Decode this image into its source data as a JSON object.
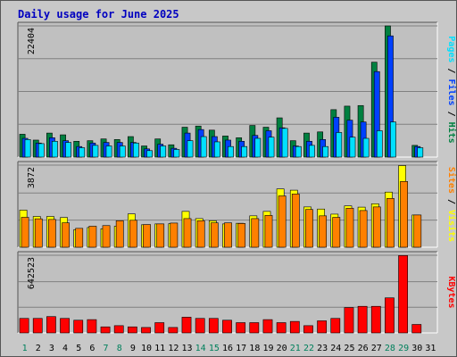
{
  "chart_data": {
    "type": "bar",
    "title": "Daily usage for June 2025",
    "colors": {
      "hits": "#008040",
      "files": "#0040ff",
      "pages": "#00e0ff",
      "visits": "#ffff00",
      "sites": "#ff8000",
      "kbytes": "#ff0000",
      "weekday_label": "#000000",
      "weekend_label": "#00805c",
      "panel_bg": "#c0c0c0",
      "border_dark": "#555555",
      "grid": "#808080"
    },
    "days": [
      "1",
      "2",
      "3",
      "4",
      "5",
      "6",
      "7",
      "8",
      "9",
      "10",
      "11",
      "12",
      "13",
      "14",
      "15",
      "16",
      "17",
      "18",
      "19",
      "20",
      "21",
      "22",
      "23",
      "24",
      "25",
      "26",
      "27",
      "28",
      "29",
      "30",
      "31"
    ],
    "weekend_days": [
      "1",
      "7",
      "8",
      "14",
      "15",
      "21",
      "22",
      "28",
      "29"
    ],
    "panels": [
      {
        "ymax_label": "22404",
        "ylim": [
          0,
          22404
        ],
        "legend": [
          {
            "text": "Pages",
            "color": "#00e0ff"
          },
          {
            "text": " / ",
            "color": "#000000"
          },
          {
            "text": "Files",
            "color": "#0040ff"
          },
          {
            "text": " / ",
            "color": "#000000"
          },
          {
            "text": "Hits",
            "color": "#008040"
          }
        ],
        "series": [
          {
            "name": "Hits",
            "color": "#008040",
            "values": [
              3900,
              2900,
              4100,
              3800,
              2700,
              2800,
              3100,
              3000,
              3500,
              1900,
              3100,
              2100,
              5100,
              5300,
              4600,
              3600,
              3300,
              5400,
              5100,
              6700,
              2800,
              4100,
              4300,
              8100,
              8700,
              8800,
              16200,
              22400,
              0,
              2000,
              0
            ]
          },
          {
            "name": "Files",
            "color": "#0040ff",
            "values": [
              3200,
              2400,
              3300,
              2800,
              1800,
              2400,
              2500,
              2500,
              2500,
              1400,
              2200,
              1500,
              4100,
              4700,
              3500,
              2900,
              2700,
              3700,
              4500,
              5000,
              1900,
              2700,
              3000,
              6800,
              6300,
              6000,
              14600,
              20700,
              0,
              1800,
              0
            ]
          },
          {
            "name": "Pages",
            "color": "#00e0ff",
            "values": [
              3000,
              2300,
              2700,
              2500,
              1600,
              2000,
              1900,
              1900,
              2400,
              1100,
              1900,
              1300,
              2800,
              3500,
              2600,
              1800,
              1800,
              3200,
              3400,
              4900,
              1800,
              2000,
              1800,
              4200,
              3400,
              3200,
              4500,
              6000,
              0,
              1600,
              0
            ]
          }
        ]
      },
      {
        "ymax_label": "3872",
        "ylim": [
          0,
          3872
        ],
        "legend": [
          {
            "text": "Sites",
            "color": "#ff8000"
          },
          {
            "text": " / ",
            "color": "#000000"
          },
          {
            "text": "Visits",
            "color": "#ffff00"
          }
        ],
        "series": [
          {
            "name": "Visits",
            "color": "#ffff00",
            "values": [
              1750,
              1450,
              1450,
              1400,
              830,
              930,
              870,
              990,
              1570,
              1060,
              1100,
              1110,
              1690,
              1350,
              1250,
              1100,
              1130,
              1480,
              1690,
              2750,
              2690,
              1900,
              1800,
              1560,
              1950,
              1890,
              2050,
              2600,
              3850,
              1520,
              0
            ]
          },
          {
            "name": "Sites",
            "color": "#ff8000",
            "values": [
              1410,
              1340,
              1310,
              1150,
              890,
              990,
              1020,
              1250,
              1270,
              1070,
              1100,
              1140,
              1350,
              1250,
              1150,
              1150,
              1120,
              1350,
              1500,
              2420,
              2510,
              1780,
              1480,
              1410,
              1840,
              1730,
              1900,
              2300,
              3100,
              1520,
              0
            ]
          }
        ]
      },
      {
        "ymax_label": "642523",
        "ylim": [
          0,
          642523
        ],
        "legend": [
          {
            "text": "KBytes",
            "color": "#ff0000"
          }
        ],
        "series": [
          {
            "name": "KBytes",
            "color": "#ff0000",
            "values": [
              120000,
              120000,
              135000,
              120000,
              105000,
              110000,
              50000,
              60000,
              50000,
              45000,
              85000,
              45000,
              130000,
              120000,
              120000,
              105000,
              85000,
              85000,
              110000,
              85000,
              95000,
              60000,
              100000,
              120000,
              210000,
              220000,
              220000,
              290000,
              640000,
              70000,
              0
            ]
          }
        ]
      }
    ]
  }
}
